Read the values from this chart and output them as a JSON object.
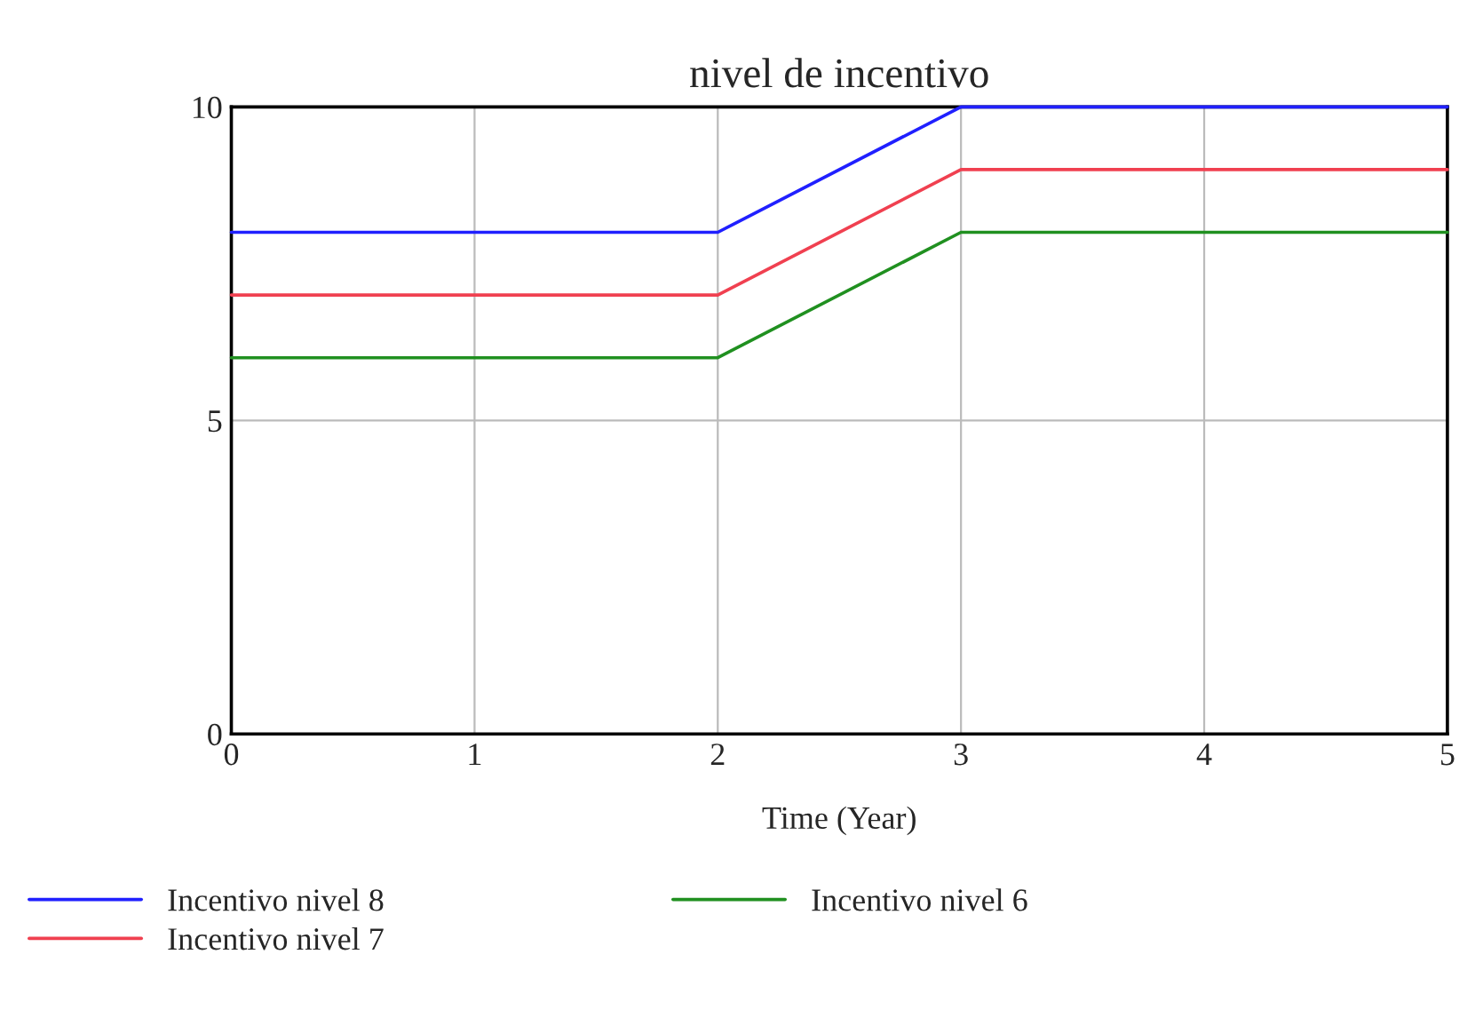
{
  "chart_data": {
    "type": "line",
    "title": "nivel de incentivo",
    "xlabel": "Time (Year)",
    "x": [
      0,
      1,
      2,
      3,
      4,
      5
    ],
    "series": [
      {
        "name": "Incentivo nivel 8",
        "color": "#2020ff",
        "values": [
          8,
          8,
          8,
          10,
          10,
          10
        ]
      },
      {
        "name": "Incentivo nivel 7",
        "color": "#f04050",
        "values": [
          7,
          7,
          7,
          9,
          9,
          9
        ]
      },
      {
        "name": "Incentivo nivel 6",
        "color": "#209020",
        "values": [
          6,
          6,
          6,
          8,
          8,
          8
        ]
      }
    ],
    "xlim": [
      0,
      5
    ],
    "xticks": [
      0,
      1,
      2,
      3,
      4,
      5
    ],
    "ylim": [
      0,
      10
    ],
    "yticks": [
      0,
      5,
      10
    ],
    "grid": true,
    "legend": "bottom",
    "marker": "none",
    "line_style": "solid"
  }
}
